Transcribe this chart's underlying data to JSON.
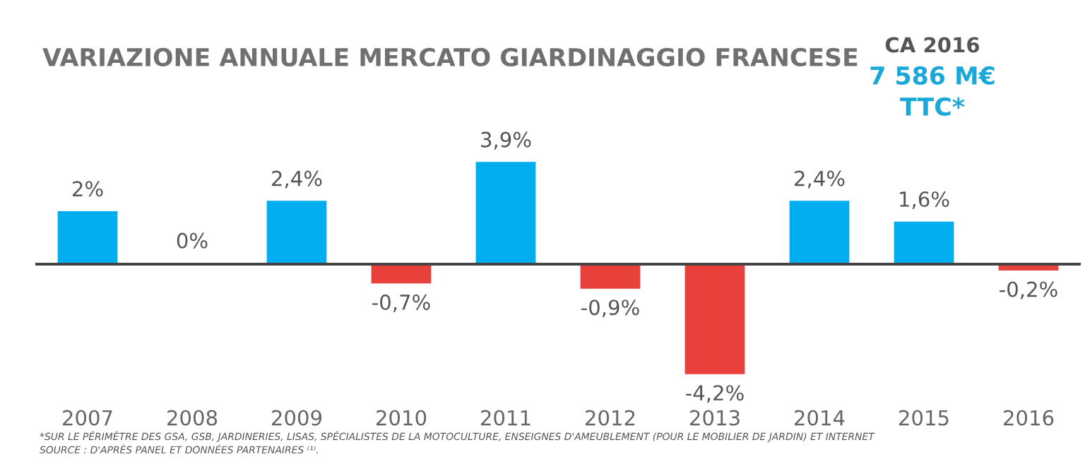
{
  "chart_data": {
    "type": "bar",
    "title": "VARIAZIONE ANNUALE MERCATO GIARDINAGGIO FRANCESE",
    "categories": [
      "2007",
      "2008",
      "2009",
      "2010",
      "2011",
      "2012",
      "2013",
      "2014",
      "2015",
      "2016"
    ],
    "values": [
      2,
      0,
      2.4,
      -0.7,
      3.9,
      -0.9,
      -4.2,
      2.4,
      1.6,
      -0.2
    ],
    "colors": [
      "#00aeef",
      "#00aeef",
      "#00aeef",
      "#e8413c",
      "#00aeef",
      "#e8413c",
      "#e8413c",
      "#00aeef",
      "#00aeef",
      "#e8413c"
    ],
    "value_labels": [
      "2%",
      "0%",
      "2,4%",
      "-0,7%",
      "3,9%",
      "-0,9%",
      "-4,2%",
      "2,4%",
      "1,6%",
      "-0,2%"
    ],
    "grid": false,
    "legend": false,
    "annotations": [
      "CA 2016",
      "7 586 M€",
      "TTC*",
      "*SUR LE PÉRIMÈTRE DES GSA, GSB, JARDINERIES, LISAS, SPÉCIALISTES DE LA MOTOCULTURE, ENSEIGNES D'AMEUBLEMENT (POUR LE MOBILIER DE JARDIN) ET INTERNET",
      "SOURCE : D'APRÈS PANEL ET DONNÉES PARTENAIRES ⁽¹⁾."
    ]
  }
}
